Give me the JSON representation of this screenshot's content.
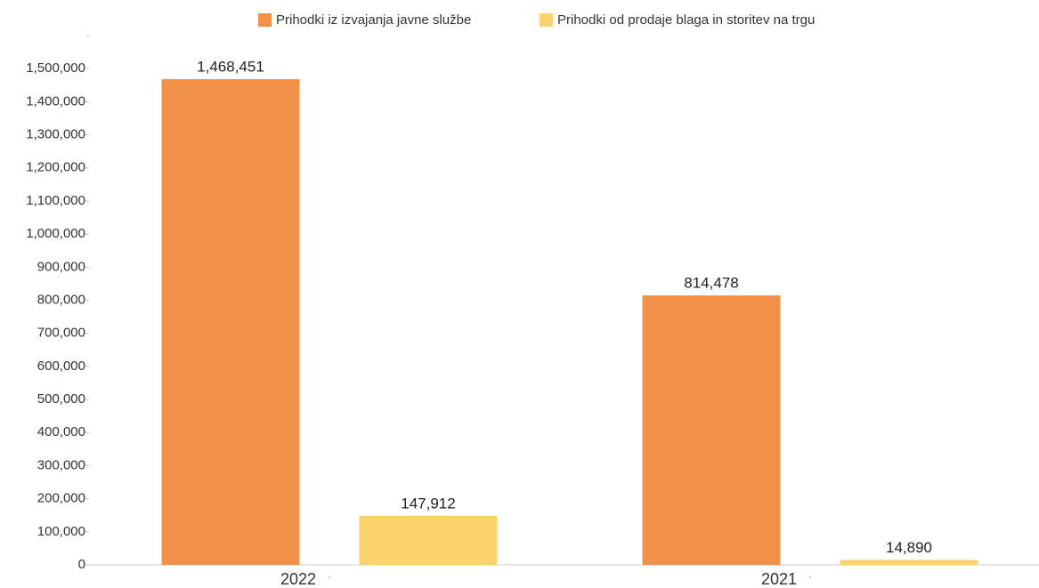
{
  "chart_data": {
    "type": "bar",
    "categories": [
      "2022",
      "2021"
    ],
    "series": [
      {
        "name": "Prihodki iz izvajanja javne službe",
        "color": "#f2914a",
        "values": [
          1468451,
          814478
        ],
        "value_labels": [
          "1,468,451",
          "814,478"
        ]
      },
      {
        "name": "Prihodki od prodaje blaga in storitev na trgu",
        "color": "#fcd36b",
        "values": [
          147912,
          14890
        ],
        "value_labels": [
          "147,912",
          "14,890"
        ]
      }
    ],
    "ylim": [
      0,
      1600000
    ],
    "yticks": [
      0,
      {
        "value": 100000,
        "label": "100,000"
      },
      {
        "value": 200000,
        "label": "200,000"
      },
      {
        "value": 300000,
        "label": "300,000"
      },
      {
        "value": 400000,
        "label": "400,000"
      },
      {
        "value": 500000,
        "label": "500,000"
      },
      {
        "value": 600000,
        "label": "600,000"
      },
      {
        "value": 700000,
        "label": "700,000"
      },
      {
        "value": 800000,
        "label": "800,000"
      },
      {
        "value": 900000,
        "label": "900,000"
      },
      {
        "value": 1000000,
        "label": "1,000,000"
      },
      {
        "value": 1100000,
        "label": "1,100,000"
      },
      {
        "value": 1200000,
        "label": "1,200,000"
      },
      {
        "value": 1300000,
        "label": "1,300,000"
      },
      {
        "value": 1400000,
        "label": "1,400,000"
      },
      {
        "value": 1500000,
        "label": "1,500,000"
      }
    ],
    "legend": "top"
  }
}
